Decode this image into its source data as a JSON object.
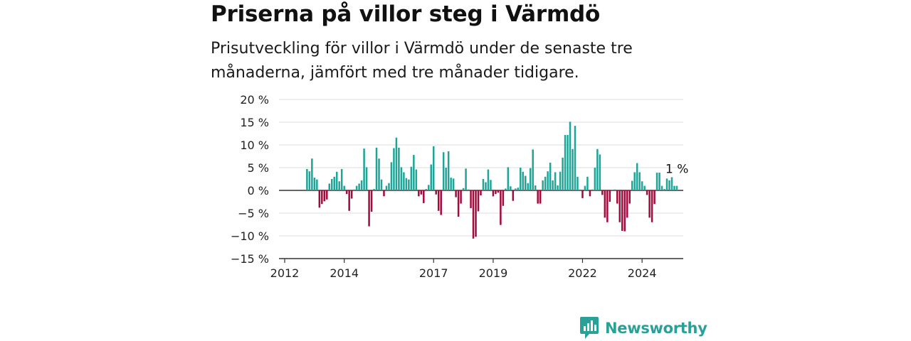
{
  "header": {
    "title": "Priserna på villor steg i Värmdö",
    "subtitle": "Prisutveckling för villor i Värmdö under de senaste tre månaderna, jämfört med tre månader tidigare."
  },
  "brand": {
    "name": "Newsworthy",
    "icon": "bar-chart-speech-bubble-icon",
    "color": "#2aa198"
  },
  "colors": {
    "positive": "#1fa597",
    "negative": "#a30b3c",
    "grid": "#dddddd",
    "axis": "#333333"
  },
  "chart_data": {
    "type": "bar",
    "ylim": [
      -15,
      20
    ],
    "yticks": [
      20,
      15,
      10,
      5,
      0,
      -5,
      -10,
      -15
    ],
    "ytick_labels": [
      "20 %",
      "15 %",
      "10 %",
      "5 %",
      "0 %",
      "−5 %",
      "−10 %",
      "−15 %"
    ],
    "x_tick_labels": [
      "2012",
      "2014",
      "2017",
      "2019",
      "2022",
      "2024"
    ],
    "x_tick_dates": [
      "2012-01",
      "2014-01",
      "2017-01",
      "2019-01",
      "2022-01",
      "2024-01"
    ],
    "x_start": "2012-10",
    "frequency": "monthly",
    "annotation": "1 %",
    "values": [
      4.7,
      4.2,
      7.0,
      2.8,
      2.4,
      -3.8,
      -3.0,
      -2.4,
      -2.0,
      1.5,
      2.5,
      3.0,
      4.1,
      2.0,
      4.7,
      1.0,
      -0.8,
      -4.5,
      -1.8,
      0.2,
      1.0,
      1.5,
      2.2,
      9.2,
      5.1,
      -7.9,
      -4.7,
      0.3,
      9.4,
      7.0,
      2.4,
      -1.3,
      1.0,
      1.6,
      6.2,
      9.3,
      11.6,
      9.4,
      5.1,
      4.0,
      2.7,
      2.4,
      5.2,
      7.8,
      4.6,
      -1.3,
      -0.9,
      -2.8,
      0.3,
      1.2,
      5.7,
      9.7,
      -0.9,
      -4.5,
      -5.4,
      8.4,
      5.0,
      8.6,
      2.8,
      2.6,
      -1.5,
      -5.8,
      -2.9,
      0.5,
      4.8,
      0.2,
      -3.9,
      -10.6,
      -10.2,
      -4.6,
      -1.1,
      2.5,
      1.8,
      4.6,
      2.3,
      -1.3,
      -0.8,
      -0.5,
      -7.6,
      -3.4,
      0.4,
      5.1,
      0.9,
      -2.3,
      0.4,
      0.6,
      5.0,
      4.1,
      3.2,
      1.6,
      4.9,
      9.0,
      1.1,
      -2.9,
      -2.9,
      2.2,
      3.0,
      4.2,
      6.1,
      2.2,
      4.0,
      1.1,
      4.1,
      7.2,
      12.2,
      12.2,
      15.1,
      9.1,
      14.2,
      3.0,
      0.2,
      -1.7,
      1.0,
      3.0,
      -1.3,
      0.2,
      5.0,
      9.1,
      7.9,
      -1.0,
      -6.0,
      -7.0,
      -2.5,
      0.1,
      0.2,
      -2.9,
      -7.0,
      -8.9,
      -9.0,
      -6.0,
      -2.9,
      2.1,
      4.0,
      6.0,
      4.0,
      2.0,
      1.0,
      -1.0,
      -6.0,
      -7.0,
      -3.0,
      3.9,
      3.9,
      1.0,
      0.3,
      2.6,
      2.2,
      2.9,
      1.0,
      1.0
    ]
  }
}
